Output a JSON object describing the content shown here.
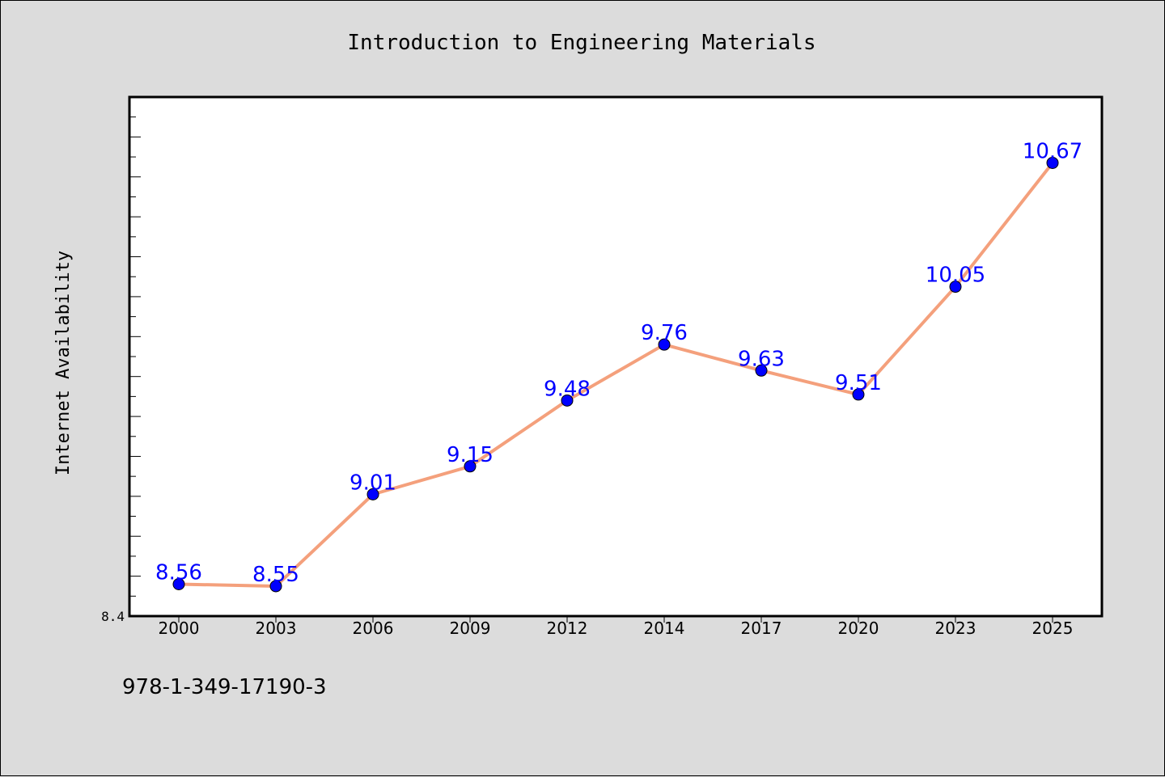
{
  "footer": {
    "isbn": "978-1-349-17190-3"
  },
  "chart_data": {
    "type": "line",
    "title": "Introduction to Engineering Materials",
    "xlabel": "",
    "ylabel": "Internet Availability",
    "categories": [
      "2000",
      "2003",
      "2006",
      "2009",
      "2012",
      "2014",
      "2017",
      "2020",
      "2023",
      "2025"
    ],
    "series": [
      {
        "values": [
          8.56,
          8.55,
          9.01,
          9.15,
          9.48,
          9.76,
          9.63,
          9.51,
          10.05,
          10.67
        ],
        "line_color": "#f4a07c",
        "marker_color": "#0000ff",
        "labels": [
          "8.56",
          "8.55",
          "9.01",
          "9.15",
          "9.48",
          "9.76",
          "9.63",
          "9.51",
          "10.05",
          "10.67"
        ]
      }
    ],
    "ytick_labels": [
      "8.4"
    ],
    "ylim": [
      8.4,
      11.0
    ],
    "grid": false,
    "legend": "none"
  }
}
